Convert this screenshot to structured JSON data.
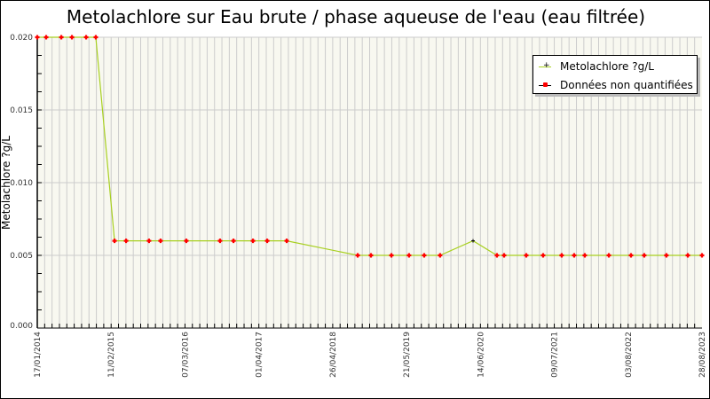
{
  "chart_data": {
    "type": "line",
    "title": "Metolachlore sur Eau brute / phase aqueuse de l'eau (eau filtrée)",
    "xlabel": "",
    "ylabel": "Metolachlore ?g/L",
    "xlim": [
      "17/01/2014",
      "28/08/2023"
    ],
    "ylim": [
      0,
      0.02
    ],
    "x_tick_labels": [
      "17/01/2014",
      "11/02/2015",
      "07/03/2016",
      "01/04/2017",
      "26/04/2018",
      "21/05/2019",
      "14/06/2020",
      "09/07/2021",
      "03/08/2022",
      "28/08/2023"
    ],
    "y_tick_labels": [
      "0.000",
      "0.005",
      "0.010",
      "0.015",
      "0.020"
    ],
    "grid": true,
    "legend_position": "top-right",
    "legend": [
      "Metolachlore ?g/L",
      "Données non quantifiées"
    ],
    "colors": {
      "line": "#a8d020",
      "quantified": "#000000",
      "non_quantified": "#ff0000",
      "plot_bg": "#f8f8f0",
      "grid": "#cccccc"
    },
    "points": [
      {
        "date": "2014-01-17",
        "value": 0.02,
        "quantified": false
      },
      {
        "date": "2014-03-05",
        "value": 0.02,
        "quantified": false
      },
      {
        "date": "2014-05-24",
        "value": 0.02,
        "quantified": false
      },
      {
        "date": "2014-07-19",
        "value": 0.02,
        "quantified": false
      },
      {
        "date": "2014-10-02",
        "value": 0.02,
        "quantified": false
      },
      {
        "date": "2014-11-22",
        "value": 0.02,
        "quantified": false
      },
      {
        "date": "2015-03-01",
        "value": 0.006,
        "quantified": false
      },
      {
        "date": "2015-05-01",
        "value": 0.006,
        "quantified": false
      },
      {
        "date": "2015-08-30",
        "value": 0.006,
        "quantified": false
      },
      {
        "date": "2015-10-30",
        "value": 0.006,
        "quantified": false
      },
      {
        "date": "2016-03-14",
        "value": 0.006,
        "quantified": false
      },
      {
        "date": "2016-09-08",
        "value": 0.006,
        "quantified": false
      },
      {
        "date": "2016-11-18",
        "value": 0.006,
        "quantified": false
      },
      {
        "date": "2017-03-01",
        "value": 0.006,
        "quantified": false
      },
      {
        "date": "2017-05-15",
        "value": 0.006,
        "quantified": false
      },
      {
        "date": "2017-08-26",
        "value": 0.006,
        "quantified": false
      },
      {
        "date": "2018-09-05",
        "value": 0.005,
        "quantified": false
      },
      {
        "date": "2018-11-14",
        "value": 0.005,
        "quantified": false
      },
      {
        "date": "2019-03-02",
        "value": 0.005,
        "quantified": false
      },
      {
        "date": "2019-06-03",
        "value": 0.005,
        "quantified": false
      },
      {
        "date": "2019-08-22",
        "value": 0.005,
        "quantified": false
      },
      {
        "date": "2019-11-14",
        "value": 0.005,
        "quantified": false
      },
      {
        "date": "2020-05-06",
        "value": 0.006,
        "quantified": true
      },
      {
        "date": "2020-09-09",
        "value": 0.005,
        "quantified": false
      },
      {
        "date": "2020-10-17",
        "value": 0.005,
        "quantified": false
      },
      {
        "date": "2021-02-11",
        "value": 0.005,
        "quantified": false
      },
      {
        "date": "2021-05-11",
        "value": 0.005,
        "quantified": false
      },
      {
        "date": "2021-08-17",
        "value": 0.005,
        "quantified": false
      },
      {
        "date": "2021-10-22",
        "value": 0.005,
        "quantified": false
      },
      {
        "date": "2021-12-17",
        "value": 0.005,
        "quantified": false
      },
      {
        "date": "2022-04-23",
        "value": 0.005,
        "quantified": false
      },
      {
        "date": "2022-08-18",
        "value": 0.005,
        "quantified": false
      },
      {
        "date": "2022-10-27",
        "value": 0.005,
        "quantified": false
      },
      {
        "date": "2023-02-21",
        "value": 0.005,
        "quantified": false
      },
      {
        "date": "2023-06-14",
        "value": 0.005,
        "quantified": false
      },
      {
        "date": "2023-08-28",
        "value": 0.005,
        "quantified": false
      }
    ]
  }
}
